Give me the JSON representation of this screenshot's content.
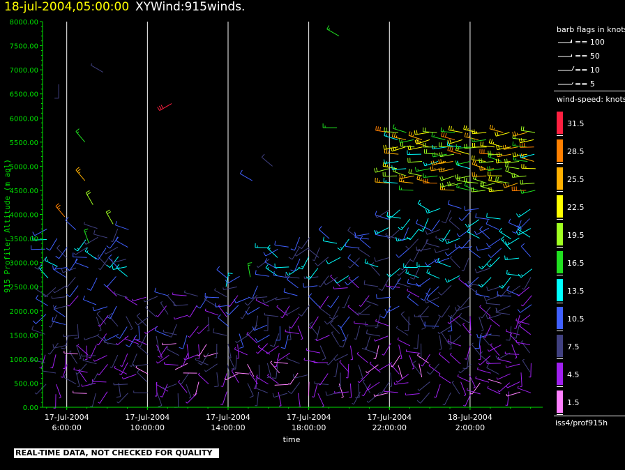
{
  "title": {
    "datetime": "18-jul-2004,05:00:00",
    "product": "XYWind:915winds."
  },
  "disclaimer": "REAL-TIME DATA, NOT CHECKED FOR QUALITY",
  "station_id": "iss4/prof915h",
  "barb_legend": {
    "title": "barb flags in knots",
    "entries": [
      {
        "label": "== 100"
      },
      {
        "label": "== 50"
      },
      {
        "label": "== 10"
      },
      {
        "label": "== 5"
      }
    ]
  },
  "speed_legend": {
    "title": "wind-speed: knots",
    "levels": [
      {
        "value": "31.5",
        "color": "#ff2040"
      },
      {
        "value": "28.5",
        "color": "#ff8000"
      },
      {
        "value": "25.5",
        "color": "#ffb000"
      },
      {
        "value": "22.5",
        "color": "#ffff00"
      },
      {
        "value": "19.5",
        "color": "#a0ff20"
      },
      {
        "value": "16.5",
        "color": "#20e020"
      },
      {
        "value": "13.5",
        "color": "#00ffff"
      },
      {
        "value": "10.5",
        "color": "#4060ff"
      },
      {
        "value": "7.5",
        "color": "#404080"
      },
      {
        "value": "4.5",
        "color": "#a020f0"
      },
      {
        "value": "1.5",
        "color": "#ff80ff"
      }
    ]
  },
  "chart_data": {
    "type": "scatter",
    "ylabel": "915 Profiler Altitude (m agl)",
    "xlabel": "time",
    "ylim": [
      0,
      8000
    ],
    "yticks": [
      "8000.00",
      "7500.00",
      "7000.00",
      "6500.00",
      "6000.00",
      "5500.00",
      "5000.00",
      "4500.00",
      "4000.00",
      "3500.00",
      "3000.00",
      "2500.00",
      "2000.00",
      "1500.00",
      "1000.00",
      "500.00",
      "0.00"
    ],
    "xlim_hours": [
      4.8,
      29.6
    ],
    "xticks": [
      {
        "hour": 6,
        "date": "17-Jul-2004",
        "time": "6:00:00"
      },
      {
        "hour": 10,
        "date": "17-Jul-2004",
        "time": "10:00:00"
      },
      {
        "hour": 14,
        "date": "17-Jul-2004",
        "time": "14:00:00"
      },
      {
        "hour": 18,
        "date": "17-Jul-2004",
        "time": "18:00:00"
      },
      {
        "hour": 22,
        "date": "17-Jul-2004",
        "time": "22:00:00"
      },
      {
        "hour": 26,
        "date": "18-Jul-2004",
        "time": "2:00:00"
      }
    ],
    "vertical_grid": true,
    "marker": "wind barb, colored by wind speed (knots)"
  },
  "colors": {
    "axis": "#00e000",
    "label_text": "#ffffff",
    "grid": "#ffffff"
  }
}
